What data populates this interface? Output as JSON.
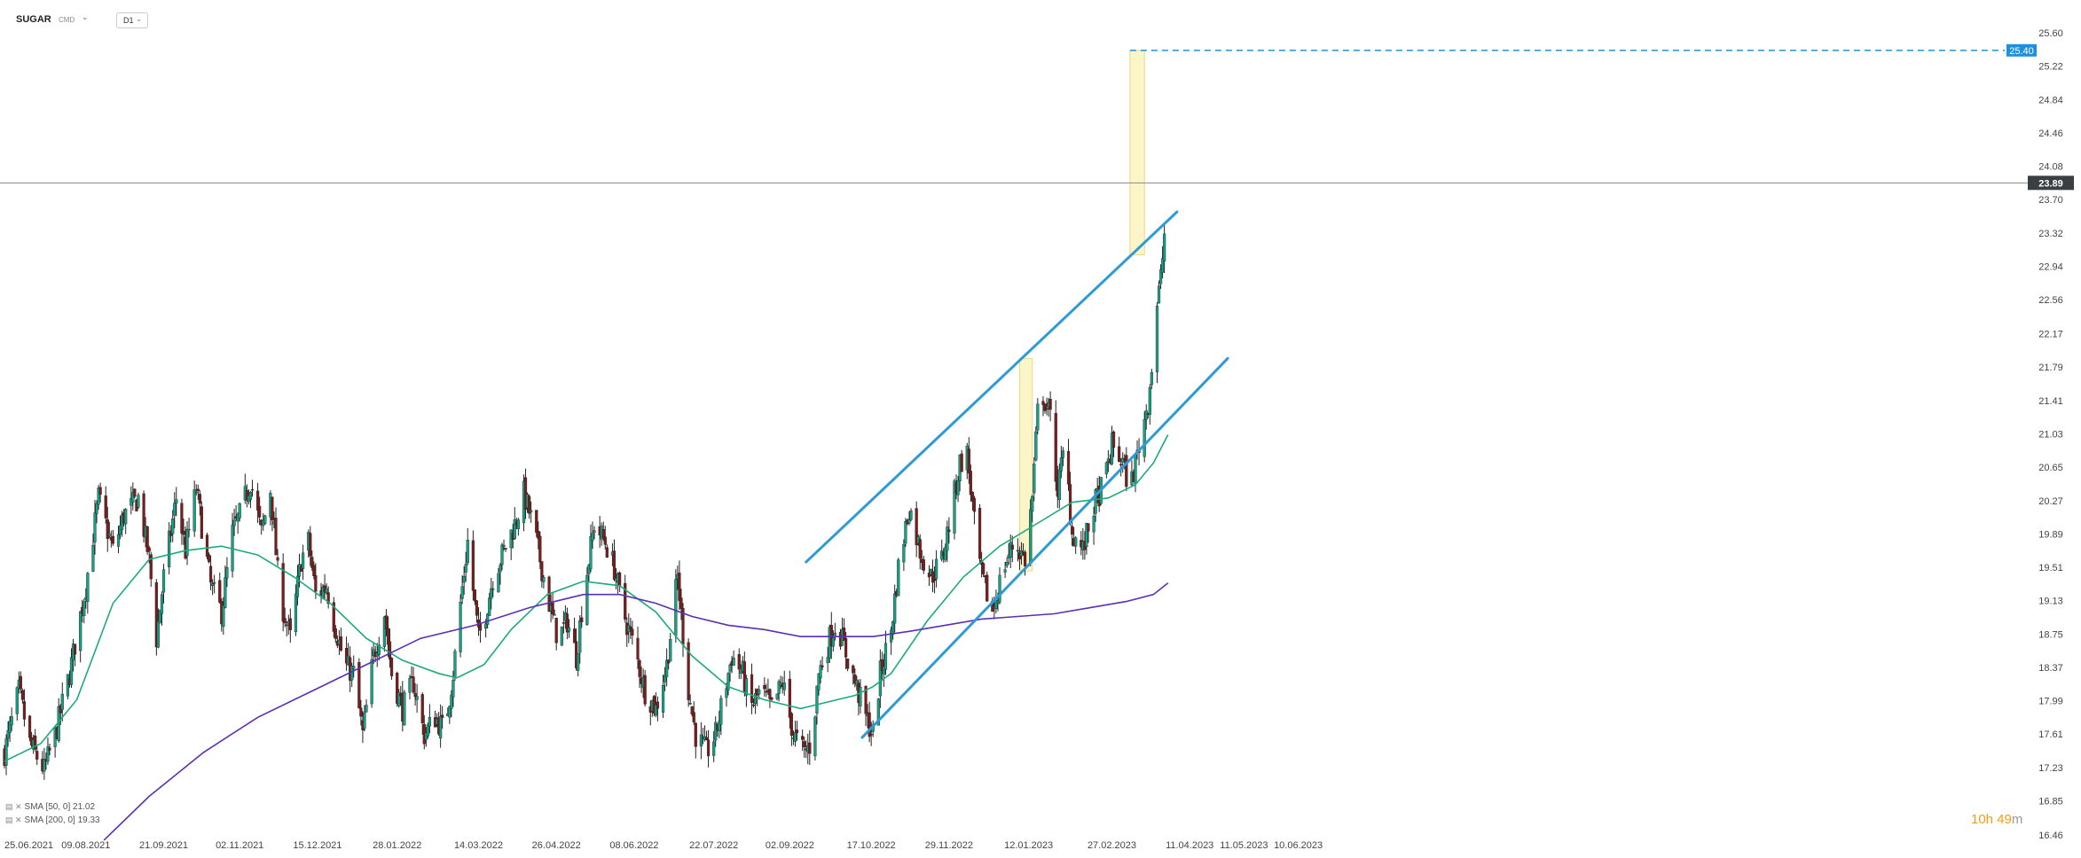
{
  "header": {
    "symbol": "SUGAR",
    "exchange": "CMD",
    "symbol_caret": "⌄",
    "timeframe": "D1",
    "timeframe_caret": "⌄"
  },
  "legend": [
    {
      "icon": "▤ ✕",
      "label": "SMA [50, 0] 21.02",
      "color": "#1aab7c"
    },
    {
      "icon": "▤ ✕",
      "label": "SMA [200, 0] 19.33",
      "color": "#5b2fb5"
    }
  ],
  "timer": {
    "hours": "10h",
    "minutes": "49",
    "unit": "m"
  },
  "chart_data": {
    "type": "candlestick",
    "title": "",
    "ylim": [
      16.46,
      25.76
    ],
    "y_ticks": [
      "25.60",
      "25.22",
      "24.84",
      "24.46",
      "24.08",
      "23.70",
      "23.32",
      "22.94",
      "22.56",
      "22.17",
      "21.79",
      "21.41",
      "21.03",
      "20.65",
      "20.27",
      "19.89",
      "19.51",
      "19.13",
      "18.75",
      "18.37",
      "17.99",
      "17.61",
      "17.23",
      "16.85",
      "16.46"
    ],
    "x_ticks": [
      "25.06.2021",
      "09.08.2021",
      "21.09.2021",
      "02.11.2021",
      "15.12.2021",
      "28.01.2022",
      "14.03.2022",
      "26.04.2022",
      "08.06.2022",
      "22.07.2022",
      "02.09.2022",
      "17.10.2022",
      "29.11.2022",
      "12.01.2023",
      "27.02.2023",
      "11.04.2023",
      "11.05.2023",
      "10.06.2023"
    ],
    "x_tick_days": [
      0,
      45,
      88,
      130,
      173,
      217,
      262,
      305,
      348,
      392,
      434,
      479,
      522,
      566,
      612,
      655,
      685,
      715
    ],
    "last_day": 643,
    "close_path": [
      [
        0,
        17.4
      ],
      [
        8,
        18.1
      ],
      [
        14,
        17.5
      ],
      [
        22,
        17.2
      ],
      [
        28,
        17.6
      ],
      [
        36,
        18.3
      ],
      [
        45,
        19.3
      ],
      [
        52,
        20.3
      ],
      [
        60,
        19.7
      ],
      [
        66,
        20.1
      ],
      [
        74,
        20.3
      ],
      [
        80,
        19.6
      ],
      [
        84,
        18.7
      ],
      [
        88,
        19.4
      ],
      [
        95,
        20.3
      ],
      [
        100,
        19.7
      ],
      [
        106,
        20.4
      ],
      [
        114,
        19.3
      ],
      [
        120,
        19.0
      ],
      [
        126,
        19.9
      ],
      [
        130,
        20.1
      ],
      [
        136,
        20.5
      ],
      [
        142,
        19.9
      ],
      [
        147,
        20.4
      ],
      [
        152,
        19.2
      ],
      [
        158,
        18.7
      ],
      [
        164,
        19.6
      ],
      [
        168,
        19.8
      ],
      [
        172,
        19.2
      ],
      [
        178,
        19.3
      ],
      [
        182,
        18.9
      ],
      [
        188,
        18.4
      ],
      [
        193,
        18.3
      ],
      [
        198,
        17.6
      ],
      [
        204,
        18.5
      ],
      [
        210,
        19.0
      ],
      [
        214,
        18.3
      ],
      [
        220,
        17.9
      ],
      [
        226,
        18.2
      ],
      [
        232,
        17.6
      ],
      [
        238,
        17.8
      ],
      [
        243,
        17.65
      ],
      [
        248,
        18.3
      ],
      [
        252,
        19.1
      ],
      [
        256,
        19.8
      ],
      [
        262,
        18.7
      ],
      [
        266,
        19.0
      ],
      [
        270,
        19.4
      ],
      [
        276,
        19.7
      ],
      [
        282,
        20.0
      ],
      [
        287,
        20.35
      ],
      [
        292,
        20.0
      ],
      [
        297,
        19.5
      ],
      [
        302,
        19.0
      ],
      [
        306,
        18.7
      ],
      [
        311,
        18.9
      ],
      [
        316,
        18.5
      ],
      [
        320,
        19.2
      ],
      [
        326,
        20.0
      ],
      [
        332,
        19.8
      ],
      [
        337,
        19.5
      ],
      [
        342,
        19.0
      ],
      [
        348,
        18.6
      ],
      [
        354,
        18.1
      ],
      [
        360,
        17.9
      ],
      [
        366,
        18.4
      ],
      [
        372,
        19.4
      ],
      [
        378,
        18.1
      ],
      [
        382,
        17.6
      ],
      [
        388,
        17.4
      ],
      [
        393,
        17.6
      ],
      [
        398,
        18.1
      ],
      [
        402,
        18.5
      ],
      [
        408,
        18.3
      ],
      [
        412,
        17.9
      ],
      [
        418,
        18.1
      ],
      [
        424,
        17.9
      ],
      [
        430,
        18.2
      ],
      [
        436,
        17.6
      ],
      [
        442,
        17.4
      ],
      [
        446,
        17.5
      ],
      [
        450,
        18.3
      ],
      [
        456,
        18.7
      ],
      [
        460,
        18.9
      ],
      [
        464,
        18.6
      ],
      [
        470,
        18.2
      ],
      [
        476,
        17.8
      ],
      [
        480,
        17.6
      ],
      [
        484,
        18.3
      ],
      [
        490,
        18.8
      ],
      [
        494,
        19.5
      ],
      [
        500,
        20.2
      ],
      [
        506,
        19.7
      ],
      [
        512,
        19.4
      ],
      [
        518,
        19.6
      ],
      [
        522,
        20.0
      ],
      [
        528,
        20.7
      ],
      [
        532,
        20.8
      ],
      [
        536,
        20.0
      ],
      [
        540,
        19.4
      ],
      [
        546,
        19.0
      ],
      [
        552,
        19.5
      ],
      [
        558,
        19.8
      ],
      [
        564,
        19.6
      ],
      [
        568,
        20.3
      ],
      [
        572,
        21.6
      ],
      [
        578,
        21.2
      ],
      [
        582,
        20.4
      ],
      [
        586,
        20.9
      ],
      [
        590,
        19.9
      ],
      [
        596,
        19.7
      ],
      [
        602,
        20.2
      ],
      [
        608,
        20.5
      ],
      [
        612,
        20.9
      ],
      [
        618,
        20.7
      ],
      [
        622,
        20.4
      ],
      [
        628,
        21.0
      ],
      [
        632,
        21.4
      ],
      [
        635,
        22.0
      ],
      [
        637,
        22.5
      ],
      [
        639,
        22.8
      ],
      [
        641,
        23.3
      ],
      [
        643,
        23.89
      ]
    ],
    "series": [
      {
        "name": "SMA [50, 0]",
        "color": "#1aab7c",
        "points": [
          [
            0,
            17.3
          ],
          [
            20,
            17.5
          ],
          [
            40,
            18.0
          ],
          [
            60,
            19.1
          ],
          [
            80,
            19.6
          ],
          [
            100,
            19.7
          ],
          [
            120,
            19.75
          ],
          [
            140,
            19.65
          ],
          [
            160,
            19.4
          ],
          [
            180,
            19.1
          ],
          [
            200,
            18.7
          ],
          [
            220,
            18.45
          ],
          [
            240,
            18.3
          ],
          [
            250,
            18.25
          ],
          [
            265,
            18.4
          ],
          [
            280,
            18.8
          ],
          [
            300,
            19.2
          ],
          [
            320,
            19.35
          ],
          [
            340,
            19.3
          ],
          [
            360,
            19.0
          ],
          [
            380,
            18.5
          ],
          [
            400,
            18.15
          ],
          [
            420,
            18.0
          ],
          [
            440,
            17.9
          ],
          [
            460,
            18.0
          ],
          [
            470,
            18.05
          ],
          [
            480,
            18.15
          ],
          [
            490,
            18.3
          ],
          [
            510,
            18.9
          ],
          [
            530,
            19.4
          ],
          [
            550,
            19.75
          ],
          [
            570,
            20.0
          ],
          [
            590,
            20.25
          ],
          [
            610,
            20.3
          ],
          [
            625,
            20.45
          ],
          [
            635,
            20.7
          ],
          [
            643,
            21.02
          ]
        ]
      },
      {
        "name": "SMA [200, 0]",
        "color": "#5b2fb5",
        "points": [
          [
            55,
            16.4
          ],
          [
            80,
            16.9
          ],
          [
            110,
            17.4
          ],
          [
            140,
            17.8
          ],
          [
            170,
            18.1
          ],
          [
            200,
            18.4
          ],
          [
            230,
            18.7
          ],
          [
            260,
            18.85
          ],
          [
            290,
            19.05
          ],
          [
            320,
            19.2
          ],
          [
            340,
            19.2
          ],
          [
            360,
            19.1
          ],
          [
            380,
            18.95
          ],
          [
            400,
            18.85
          ],
          [
            420,
            18.8
          ],
          [
            440,
            18.72
          ],
          [
            460,
            18.72
          ],
          [
            480,
            18.72
          ],
          [
            500,
            18.78
          ],
          [
            520,
            18.85
          ],
          [
            540,
            18.92
          ],
          [
            560,
            18.95
          ],
          [
            580,
            18.98
          ],
          [
            600,
            19.05
          ],
          [
            620,
            19.12
          ],
          [
            635,
            19.2
          ],
          [
            643,
            19.33
          ]
        ]
      }
    ],
    "channel_lines": [
      {
        "color": "#2e9bd6",
        "from": [
          443,
          19.57
        ],
        "to": [
          648,
          23.56
        ]
      },
      {
        "color": "#2e9bd6",
        "from": [
          474,
          17.57
        ],
        "to": [
          676,
          21.89
        ]
      }
    ],
    "highlights": [
      {
        "from": [
          561,
          21.89
        ],
        "to": [
          568,
          19.47
        ]
      },
      {
        "from": [
          622,
          25.4
        ],
        "to": [
          630,
          23.07
        ]
      }
    ],
    "target_line": {
      "value": 25.4,
      "label": "25.40",
      "from_day": 622,
      "to_day": 720,
      "color": "#2e9bd6"
    },
    "last_price": {
      "value": 23.89,
      "label": "23.89"
    },
    "grid": false,
    "legend_position": "bottom-left"
  },
  "colors": {
    "up": "#16a085",
    "down": "#7b1d1d",
    "wick": "#222222",
    "axis_text": "#444444",
    "price_line": "#888888",
    "tag_dark": "#3a3f44",
    "tag_blue": "#1e90e0"
  }
}
